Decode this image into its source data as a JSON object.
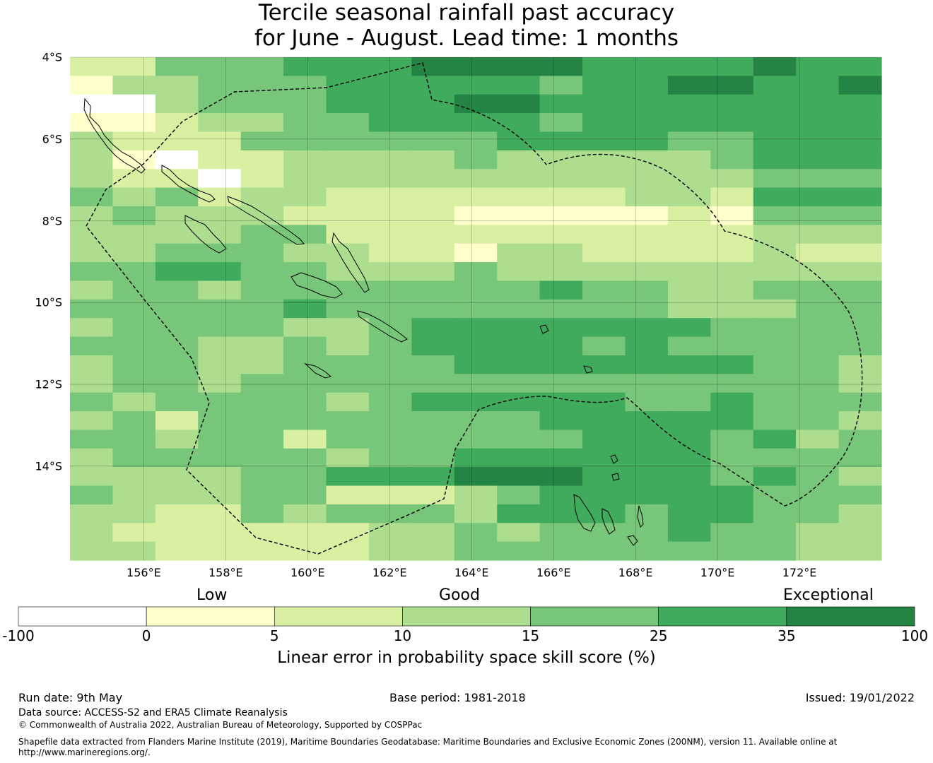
{
  "title": {
    "line1": "Tercile seasonal rainfall past accuracy",
    "line2": "for June - August. Lead time: 1 months"
  },
  "map": {
    "lat_labels": [
      "4°S",
      "6°S",
      "8°S",
      "10°S",
      "12°S",
      "14°S"
    ],
    "lon_labels": [
      "156°E",
      "158°E",
      "160°E",
      "162°E",
      "164°E",
      "166°E",
      "168°E",
      "170°E",
      "172°E"
    ],
    "lat_range": [
      -16.3,
      -4.0
    ],
    "lon_range": [
      154.2,
      174.0
    ],
    "skill_grid_rows_north_to_south": [
      "2244455566665555655",
      "1334445555545566556",
      "0034445556655555555",
      "1123344555545555555",
      "3222444444555544555",
      "3102233334333334555",
      "3220233333333333444",
      "4342332222222332555",
      "3433322221111121444",
      "3333442222222222333",
      "3344433221332222322",
      "4455443334333333333",
      "3443444444454433444",
      "4444454444444433344",
      "3444433455555554444",
      "4443343455554544444",
      "3443344445555555443",
      "3443444444444444443",
      "4344443455555445444",
      "3424444444455555443",
      "4434424444445554534",
      "3444443445555554444",
      "3333445556665554543",
      "4333442223455555444",
      "3322434443555455443",
      "3222222334344454433",
      "3322222334444444433"
    ]
  },
  "colorbar": {
    "ticks": [
      "-100",
      "0",
      "5",
      "10",
      "15",
      "25",
      "35",
      "100"
    ],
    "colors": [
      "#ffffff",
      "#ffffcc",
      "#d9f0a3",
      "#addd8e",
      "#78c679",
      "#41ab5d",
      "#238443"
    ],
    "category_labels": {
      "low": "Low",
      "good": "Good",
      "exceptional": "Exceptional"
    },
    "title": "Linear error in probability space skill score (%)"
  },
  "footer": {
    "run_date": "Run date: 9th May",
    "base_period": "Base period: 1981-2018",
    "issued": "Issued: 19/01/2022",
    "data_source": "Data source: ACCESS-S2 and ERA5 Climate Reanalysis",
    "copyright": "© Commonwealth of Australia 2022, Australian Bureau of Meteorology, Supported by COSPPac",
    "shapefile_line1": "Shapefile data extracted from Flanders Marine Institute (2019), Maritime Boundaries Geodatabase: Maritime Boundaries and Exclusive Economic Zones (200NM), version 11. Available online at",
    "shapefile_line2": "http://www.marineregions.org/."
  }
}
